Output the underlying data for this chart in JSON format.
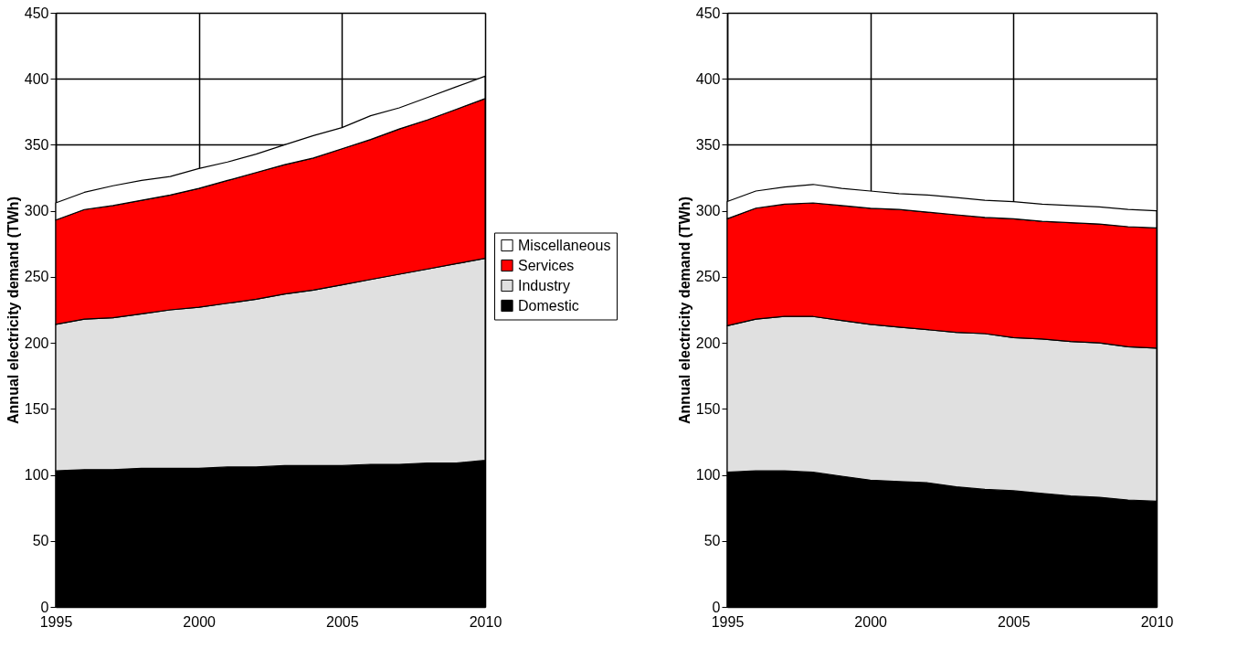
{
  "chart_data": [
    {
      "type": "area",
      "stacked": true,
      "ylabel": "Annual electricity demand (TWh)",
      "x": [
        1995,
        1996,
        1997,
        1998,
        1999,
        2000,
        2001,
        2002,
        2003,
        2004,
        2005,
        2006,
        2007,
        2008,
        2009,
        2010
      ],
      "series": [
        {
          "name": "Domestic",
          "color": "#000000",
          "values": [
            103,
            104,
            104,
            105,
            105,
            105,
            106,
            106,
            107,
            107,
            107,
            108,
            108,
            109,
            109,
            111
          ]
        },
        {
          "name": "Industry",
          "color": "#e0e0e0",
          "values": [
            111,
            114,
            115,
            117,
            120,
            122,
            124,
            127,
            130,
            133,
            137,
            140,
            144,
            147,
            151,
            153
          ]
        },
        {
          "name": "Services",
          "color": "#ff0000",
          "values": [
            79,
            83,
            85,
            86,
            87,
            90,
            93,
            96,
            98,
            100,
            103,
            106,
            110,
            113,
            117,
            121
          ]
        },
        {
          "name": "Miscellaneous",
          "color": "#ffffff",
          "values": [
            13,
            13,
            15,
            15,
            14,
            15,
            14,
            14,
            15,
            17,
            16,
            18,
            16,
            17,
            17,
            17
          ]
        }
      ],
      "xlim": [
        1995,
        2010
      ],
      "xticks": [
        1995,
        2000,
        2005,
        2010
      ],
      "ylim": [
        0,
        450
      ],
      "yticks": [
        0,
        50,
        100,
        150,
        200,
        250,
        300,
        350,
        400,
        450
      ],
      "grid": true,
      "legend": "right"
    },
    {
      "type": "area",
      "stacked": true,
      "ylabel": "Annual electricity demand (TWh)",
      "x": [
        1995,
        1996,
        1997,
        1998,
        1999,
        2000,
        2001,
        2002,
        2003,
        2004,
        2005,
        2006,
        2007,
        2008,
        2009,
        2010
      ],
      "series": [
        {
          "name": "Domestic",
          "color": "#000000",
          "values": [
            102,
            103,
            103,
            102,
            99,
            96,
            95,
            94,
            91,
            89,
            88,
            86,
            84,
            83,
            81,
            80
          ]
        },
        {
          "name": "Industry",
          "color": "#e0e0e0",
          "values": [
            111,
            115,
            117,
            118,
            118,
            118,
            117,
            116,
            117,
            118,
            116,
            117,
            117,
            117,
            116,
            116
          ]
        },
        {
          "name": "Services",
          "color": "#ff0000",
          "values": [
            81,
            84,
            85,
            86,
            87,
            88,
            89,
            89,
            89,
            88,
            90,
            89,
            90,
            90,
            91,
            91
          ]
        },
        {
          "name": "Miscellaneous",
          "color": "#ffffff",
          "values": [
            13,
            13,
            13,
            14,
            13,
            13,
            12,
            13,
            13,
            13,
            13,
            13,
            13,
            13,
            13,
            13
          ]
        }
      ],
      "xlim": [
        1995,
        2010
      ],
      "xticks": [
        1995,
        2000,
        2005,
        2010
      ],
      "ylim": [
        0,
        450
      ],
      "yticks": [
        0,
        50,
        100,
        150,
        200,
        250,
        300,
        350,
        400,
        450
      ],
      "grid": true
    }
  ]
}
